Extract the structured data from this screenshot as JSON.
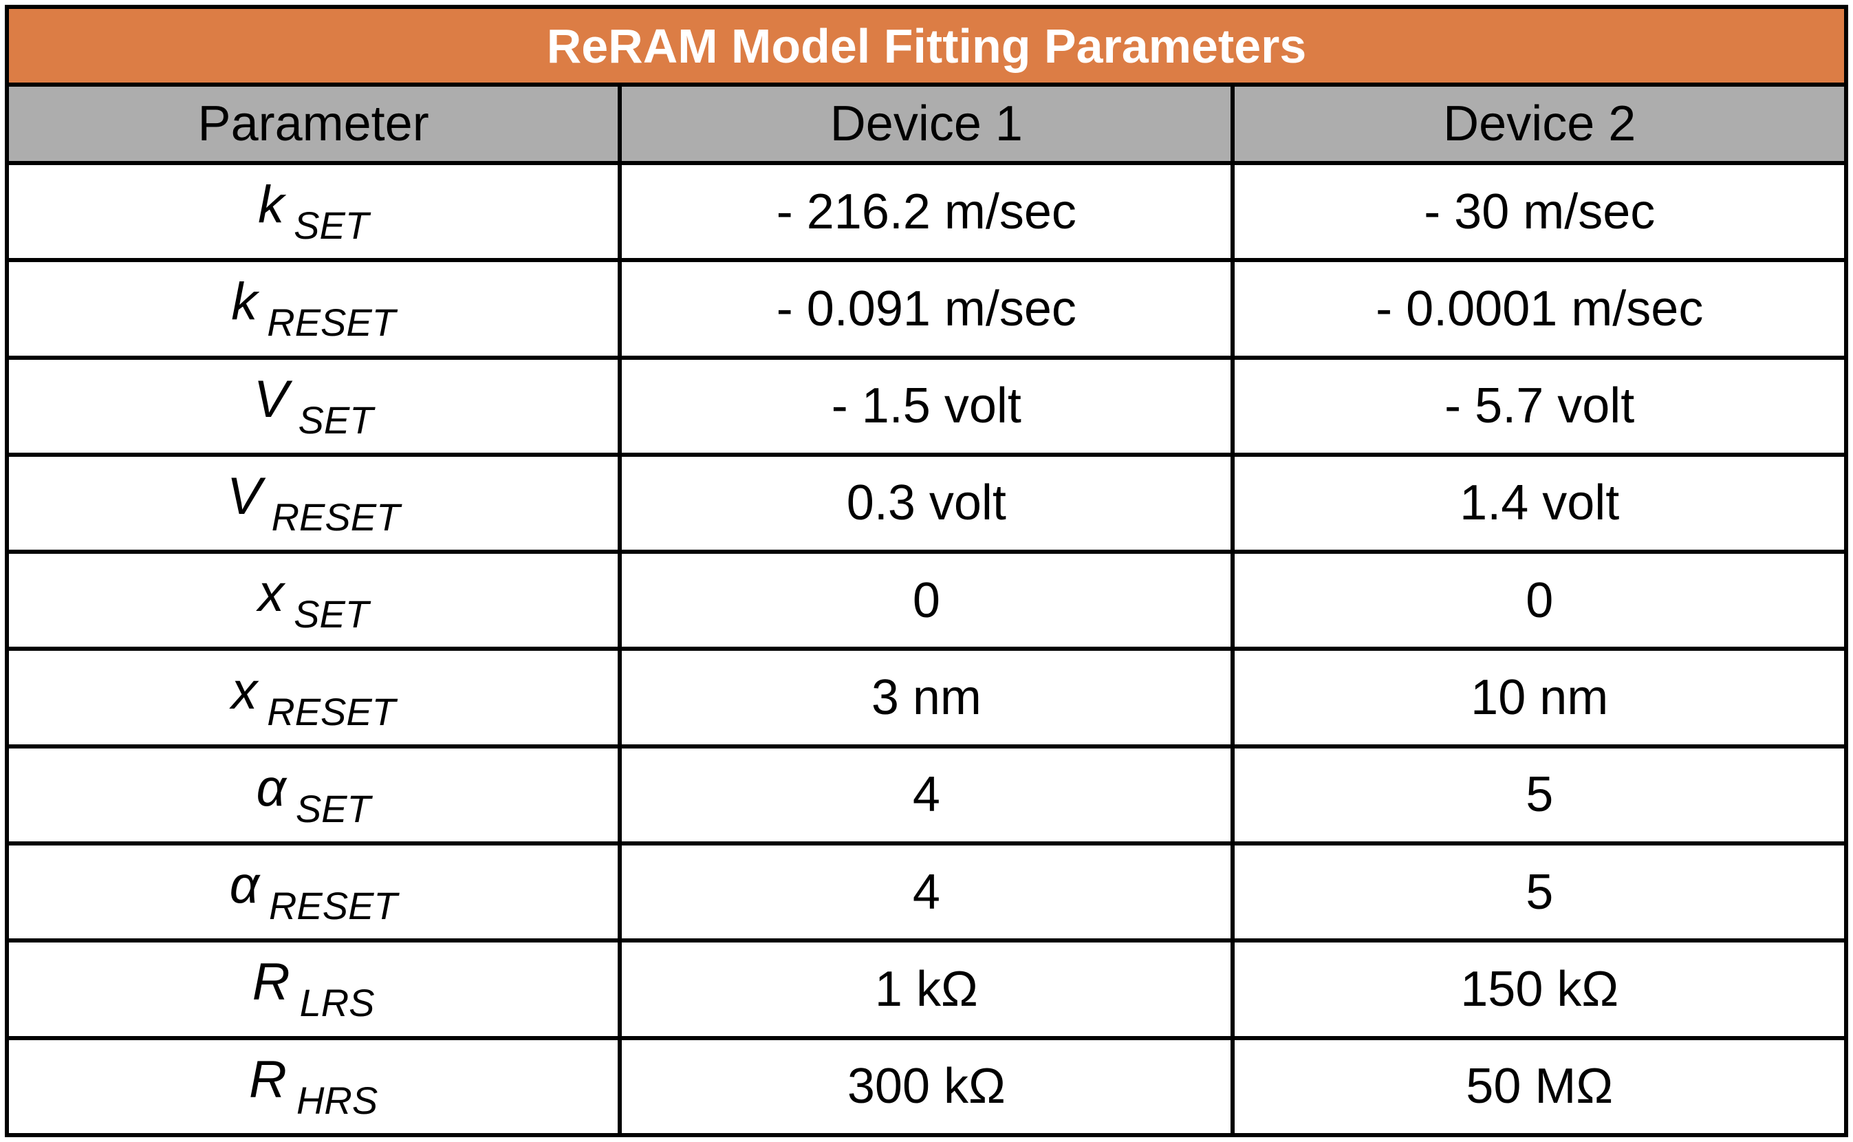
{
  "table": {
    "title": "ReRAM Model Fitting Parameters",
    "headers": [
      "Parameter",
      "Device 1",
      "Device 2"
    ],
    "rows": [
      {
        "symbol": "k",
        "subscript": "SET",
        "device1": "- 216.2 m/sec",
        "device2": "- 30 m/sec"
      },
      {
        "symbol": "k",
        "subscript": "RESET",
        "device1": "- 0.091 m/sec",
        "device2": "- 0.0001 m/sec"
      },
      {
        "symbol": "V",
        "subscript": "SET",
        "device1": "- 1.5 volt",
        "device2": "- 5.7 volt"
      },
      {
        "symbol": "V",
        "subscript": "RESET",
        "device1": "0.3 volt",
        "device2": "1.4 volt"
      },
      {
        "symbol": "x",
        "subscript": "SET",
        "device1": "0",
        "device2": "0"
      },
      {
        "symbol": "x",
        "subscript": "RESET",
        "device1": "3 nm",
        "device2": "10 nm"
      },
      {
        "symbol": "α",
        "subscript": "SET",
        "device1": "4",
        "device2": "5"
      },
      {
        "symbol": "α",
        "subscript": "RESET",
        "device1": "4",
        "device2": "5"
      },
      {
        "symbol": "R",
        "subscript": "LRS",
        "device1": "1 kΩ",
        "device2": "150 kΩ"
      },
      {
        "symbol": "R",
        "subscript": "HRS",
        "device1": "300 kΩ",
        "device2": "50 MΩ"
      }
    ]
  },
  "colors": {
    "title_bg": "#dc7d45",
    "header_bg": "#adadad",
    "border": "#000000"
  }
}
